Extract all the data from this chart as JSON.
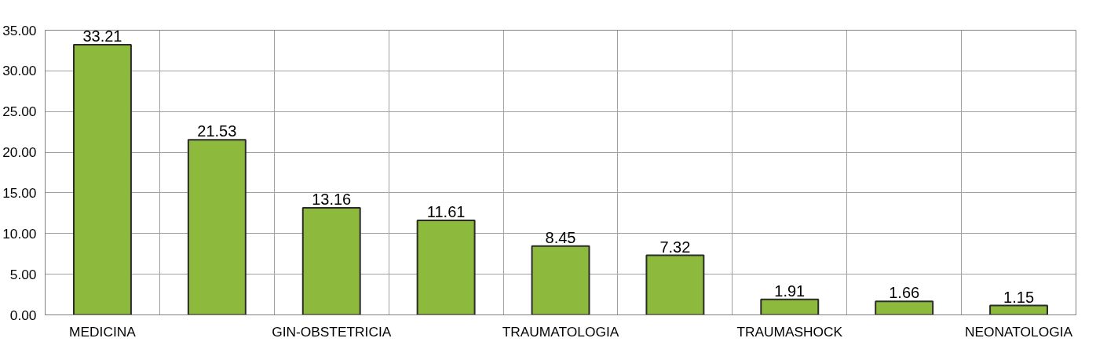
{
  "chart_data": {
    "type": "bar",
    "categories": [
      "MEDICINA",
      null,
      "GIN-OBSTETRICIA",
      null,
      "TRAUMATOLOGIA",
      null,
      "TRAUMASHOCK",
      null,
      "NEONATOLOGIA"
    ],
    "values": [
      33.21,
      21.53,
      13.16,
      11.61,
      8.45,
      7.32,
      1.91,
      1.66,
      1.15
    ],
    "color": "#8dba3c",
    "ylim": [
      0,
      35
    ],
    "yticks": [
      {
        "value": 0,
        "label": "0.00"
      },
      {
        "value": 5,
        "label": "5.00"
      },
      {
        "value": 10,
        "label": "10.00"
      },
      {
        "value": 15,
        "label": "15.00"
      },
      {
        "value": 20,
        "label": "20.00"
      },
      {
        "value": 25,
        "label": "25.00"
      },
      {
        "value": 30,
        "label": "30.00"
      },
      {
        "value": 35,
        "label": "35.00"
      }
    ],
    "grid": true,
    "data_labels": true
  }
}
